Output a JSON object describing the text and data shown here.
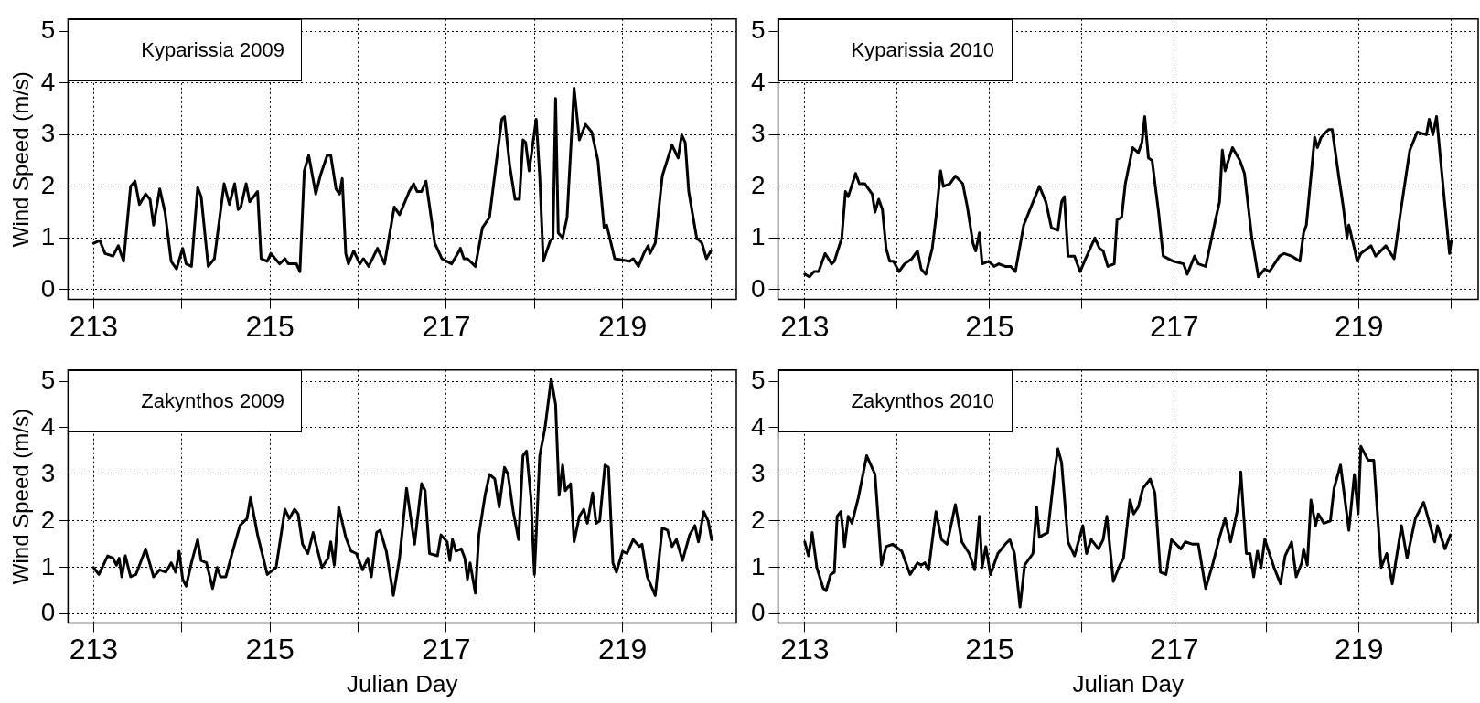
{
  "chart_data": [
    {
      "type": "line",
      "title": "Kyparissia 2009",
      "ylabel": "Wind Speed (m/s)",
      "xlim": [
        212.71,
        220.29
      ],
      "ylim": [
        -0.19,
        5.24
      ],
      "xticks": [
        213,
        {
          "value": 214,
          "label": null
        },
        215,
        {
          "value": 216,
          "label": null
        },
        217,
        {
          "value": 218,
          "label": null
        },
        219,
        {
          "value": 220,
          "label": null
        }
      ],
      "yticks": [
        0,
        1,
        2,
        3,
        4,
        5
      ],
      "grid": true,
      "line_style": "solid",
      "series": [
        {
          "color": "#000000",
          "x": [
            213.0,
            213.07,
            213.13,
            213.22,
            213.28,
            213.34,
            213.42,
            213.47,
            213.52,
            213.59,
            213.64,
            213.68,
            213.75,
            213.81,
            213.88,
            213.94,
            214.01,
            214.05,
            214.11,
            214.18,
            214.22,
            214.3,
            214.37,
            214.48,
            214.54,
            214.6,
            214.64,
            214.67,
            214.73,
            214.77,
            214.86,
            214.9,
            214.97,
            215.01,
            215.11,
            215.17,
            215.21,
            215.3,
            215.34,
            215.39,
            215.44,
            215.52,
            215.57,
            215.65,
            215.69,
            215.75,
            215.79,
            215.82,
            215.86,
            215.89,
            215.95,
            216.02,
            216.06,
            216.12,
            216.22,
            216.3,
            216.41,
            216.47,
            216.58,
            216.63,
            216.67,
            216.72,
            216.77,
            216.87,
            216.95,
            217.06,
            217.13,
            217.16,
            217.2,
            217.24,
            217.33,
            217.41,
            217.49,
            217.57,
            217.63,
            217.66,
            217.72,
            217.78,
            217.83,
            217.87,
            217.9,
            217.94,
            218.02,
            218.06,
            218.1,
            218.18,
            218.21,
            218.24,
            218.27,
            218.32,
            218.37,
            218.45,
            218.51,
            218.58,
            218.65,
            218.72,
            218.79,
            218.82,
            218.91,
            219.08,
            219.12,
            219.18,
            219.24,
            219.29,
            219.31,
            219.37,
            219.45,
            219.56,
            219.63,
            219.67,
            219.71,
            219.75,
            219.84,
            219.9,
            219.95,
            220.0
          ],
          "values": [
            0.9,
            0.95,
            0.7,
            0.65,
            0.85,
            0.55,
            2.0,
            2.1,
            1.65,
            1.85,
            1.75,
            1.25,
            1.95,
            1.5,
            0.55,
            0.4,
            0.8,
            0.5,
            0.45,
            1.98,
            1.8,
            0.45,
            0.6,
            2.05,
            1.65,
            2.05,
            1.55,
            1.6,
            2.05,
            1.7,
            1.9,
            0.6,
            0.55,
            0.7,
            0.5,
            0.6,
            0.5,
            0.5,
            0.35,
            2.3,
            2.6,
            1.85,
            2.2,
            2.6,
            2.6,
            1.95,
            1.85,
            2.15,
            0.7,
            0.5,
            0.75,
            0.5,
            0.6,
            0.45,
            0.8,
            0.5,
            1.6,
            1.45,
            1.9,
            2.05,
            1.9,
            1.9,
            2.1,
            0.9,
            0.6,
            0.5,
            0.7,
            0.8,
            0.6,
            0.6,
            0.45,
            1.2,
            1.4,
            2.5,
            3.3,
            3.35,
            2.4,
            1.75,
            1.75,
            2.9,
            2.85,
            2.3,
            3.3,
            2.2,
            0.55,
            0.95,
            1.0,
            3.7,
            1.1,
            1.0,
            1.4,
            3.9,
            2.9,
            3.2,
            3.05,
            2.5,
            1.2,
            1.25,
            0.6,
            0.55,
            0.6,
            0.45,
            0.7,
            0.85,
            0.7,
            0.9,
            2.2,
            2.8,
            2.55,
            3.0,
            2.85,
            1.9,
            1.0,
            0.9,
            0.6,
            0.75
          ]
        }
      ]
    },
    {
      "type": "line",
      "title": "Kyparissia 2010",
      "xlim": [
        212.71,
        220.29
      ],
      "ylim": [
        -0.19,
        5.24
      ],
      "xticks": [
        213,
        {
          "value": 214,
          "label": null
        },
        215,
        {
          "value": 216,
          "label": null
        },
        217,
        {
          "value": 218,
          "label": null
        },
        219,
        {
          "value": 220,
          "label": null
        }
      ],
      "yticks": [
        0,
        1,
        2,
        3,
        4,
        5
      ],
      "grid": true,
      "line_style": "solid",
      "series": [
        {
          "color": "#000000",
          "x": [
            213.0,
            213.05,
            213.1,
            213.15,
            213.22,
            213.29,
            213.32,
            213.4,
            213.44,
            213.47,
            213.55,
            213.59,
            213.65,
            213.73,
            213.76,
            213.8,
            213.84,
            213.88,
            213.92,
            213.96,
            214.02,
            214.08,
            214.16,
            214.22,
            214.26,
            214.31,
            214.38,
            214.42,
            214.47,
            214.5,
            214.57,
            214.63,
            214.71,
            214.76,
            214.82,
            214.85,
            214.89,
            214.92,
            214.99,
            215.05,
            215.1,
            215.17,
            215.23,
            215.28,
            215.37,
            215.46,
            215.54,
            215.61,
            215.67,
            215.74,
            215.78,
            215.81,
            215.85,
            215.92,
            215.98,
            216.04,
            216.14,
            216.19,
            216.23,
            216.28,
            216.35,
            216.38,
            216.43,
            216.47,
            216.55,
            216.61,
            216.65,
            216.68,
            216.72,
            216.76,
            216.83,
            216.88,
            216.99,
            217.1,
            217.14,
            217.22,
            217.26,
            217.34,
            217.44,
            217.49,
            217.52,
            217.55,
            217.63,
            217.71,
            217.76,
            217.84,
            217.91,
            217.98,
            218.03,
            218.14,
            218.19,
            218.27,
            218.36,
            218.4,
            218.43,
            218.52,
            218.55,
            218.59,
            218.67,
            218.71,
            218.78,
            218.83,
            218.87,
            218.89,
            218.95,
            218.98,
            219.02,
            219.13,
            219.18,
            219.29,
            219.38,
            219.45,
            219.55,
            219.63,
            219.73,
            219.76,
            219.8,
            219.84,
            219.9,
            219.98,
            220.0
          ],
          "values": [
            0.3,
            0.25,
            0.35,
            0.35,
            0.7,
            0.5,
            0.55,
            1.0,
            1.9,
            1.8,
            2.25,
            2.05,
            2.05,
            1.85,
            1.5,
            1.75,
            1.55,
            0.8,
            0.55,
            0.55,
            0.35,
            0.5,
            0.6,
            0.75,
            0.4,
            0.3,
            0.8,
            1.4,
            2.3,
            2.0,
            2.05,
            2.2,
            2.05,
            1.6,
            0.9,
            0.75,
            1.1,
            0.5,
            0.55,
            0.45,
            0.5,
            0.45,
            0.45,
            0.35,
            1.25,
            1.65,
            2.0,
            1.7,
            1.2,
            1.15,
            1.7,
            1.8,
            0.65,
            0.65,
            0.35,
            0.6,
            1.0,
            0.8,
            0.75,
            0.45,
            0.5,
            1.35,
            1.4,
            2.05,
            2.75,
            2.65,
            2.85,
            3.35,
            2.55,
            2.5,
            1.5,
            0.65,
            0.55,
            0.5,
            0.3,
            0.65,
            0.5,
            0.45,
            1.3,
            1.7,
            2.7,
            2.3,
            2.75,
            2.5,
            2.25,
            1.0,
            0.25,
            0.4,
            0.35,
            0.65,
            0.7,
            0.65,
            0.55,
            1.1,
            1.25,
            2.95,
            2.75,
            2.95,
            3.1,
            3.1,
            2.2,
            1.6,
            1.0,
            1.25,
            0.8,
            0.55,
            0.7,
            0.85,
            0.65,
            0.85,
            0.6,
            1.5,
            2.7,
            3.05,
            3.0,
            3.3,
            3.0,
            3.35,
            2.2,
            0.7,
            0.95
          ]
        }
      ]
    },
    {
      "type": "line",
      "title": "Zakynthos 2009",
      "ylabel": "Wind Speed (m/s)",
      "xlabel": "Julian Day",
      "xlim": [
        212.71,
        220.29
      ],
      "ylim": [
        -0.19,
        5.24
      ],
      "xticks": [
        213,
        {
          "value": 214,
          "label": null
        },
        215,
        {
          "value": 216,
          "label": null
        },
        217,
        {
          "value": 218,
          "label": null
        },
        219,
        {
          "value": 220,
          "label": null
        }
      ],
      "yticks": [
        0,
        1,
        2,
        3,
        4,
        5
      ],
      "grid": true,
      "line_style": "solid",
      "series": [
        {
          "color": "#000000",
          "x": [
            213.0,
            213.06,
            213.16,
            213.22,
            213.26,
            213.29,
            213.32,
            213.36,
            213.42,
            213.48,
            213.59,
            213.68,
            213.75,
            213.82,
            213.88,
            213.93,
            213.97,
            214.01,
            214.05,
            214.11,
            214.18,
            214.22,
            214.28,
            214.35,
            214.4,
            214.44,
            214.5,
            214.57,
            214.66,
            214.74,
            214.78,
            214.86,
            214.97,
            215.07,
            215.17,
            215.22,
            215.28,
            215.32,
            215.37,
            215.43,
            215.49,
            215.59,
            215.66,
            215.69,
            215.73,
            215.78,
            215.86,
            215.92,
            215.98,
            216.05,
            216.11,
            216.15,
            216.21,
            216.25,
            216.32,
            216.4,
            216.47,
            216.55,
            216.64,
            216.72,
            216.76,
            216.81,
            216.9,
            216.94,
            217.01,
            217.04,
            217.07,
            217.11,
            217.17,
            217.21,
            217.24,
            217.27,
            217.33,
            217.37,
            217.44,
            217.49,
            217.55,
            217.6,
            217.66,
            217.7,
            217.76,
            217.82,
            217.87,
            217.91,
            217.96,
            218.0,
            218.06,
            218.12,
            218.19,
            218.24,
            218.28,
            218.32,
            218.35,
            218.41,
            218.45,
            218.51,
            218.56,
            218.6,
            218.66,
            218.7,
            218.74,
            218.8,
            218.84,
            218.89,
            218.93,
            219.0,
            219.05,
            219.12,
            219.19,
            219.22,
            219.28,
            219.37,
            219.45,
            219.51,
            219.56,
            219.61,
            219.68,
            219.76,
            219.82,
            219.86,
            219.92,
            219.97,
            220.01
          ],
          "values": [
            1.0,
            0.85,
            1.25,
            1.2,
            1.05,
            1.2,
            0.8,
            1.25,
            0.8,
            0.85,
            1.4,
            0.8,
            0.95,
            0.9,
            1.1,
            0.9,
            1.35,
            0.75,
            0.6,
            1.1,
            1.6,
            1.15,
            1.1,
            0.55,
            1.0,
            0.8,
            0.8,
            1.3,
            1.9,
            2.05,
            2.5,
            1.7,
            0.85,
            1.0,
            2.25,
            2.05,
            2.25,
            2.15,
            1.5,
            1.3,
            1.75,
            1.0,
            1.2,
            1.55,
            1.05,
            2.3,
            1.65,
            1.35,
            1.3,
            0.95,
            1.2,
            0.8,
            1.75,
            1.8,
            1.35,
            0.4,
            1.2,
            2.7,
            1.5,
            2.8,
            2.65,
            1.3,
            1.25,
            1.7,
            1.55,
            1.15,
            1.6,
            1.35,
            1.4,
            1.2,
            0.75,
            1.1,
            0.45,
            1.7,
            2.55,
            3.0,
            2.9,
            2.3,
            3.15,
            3.0,
            2.2,
            1.6,
            3.4,
            3.5,
            2.5,
            0.85,
            3.4,
            4.0,
            5.05,
            4.5,
            2.55,
            3.2,
            2.65,
            2.8,
            1.55,
            2.1,
            2.25,
            1.95,
            2.6,
            1.95,
            2.0,
            3.2,
            3.15,
            1.1,
            0.9,
            1.35,
            1.3,
            1.6,
            1.45,
            1.5,
            0.8,
            0.4,
            1.85,
            1.8,
            1.45,
            1.6,
            1.15,
            1.7,
            1.9,
            1.55,
            2.2,
            2.0,
            1.6
          ]
        }
      ]
    },
    {
      "type": "line",
      "title": "Zakynthos 2010",
      "xlabel": "Julian Day",
      "xlim": [
        212.71,
        220.29
      ],
      "ylim": [
        -0.19,
        5.24
      ],
      "xticks": [
        213,
        {
          "value": 214,
          "label": null
        },
        215,
        {
          "value": 216,
          "label": null
        },
        217,
        {
          "value": 218,
          "label": null
        },
        219,
        {
          "value": 220,
          "label": null
        }
      ],
      "yticks": [
        0,
        1,
        2,
        3,
        4,
        5
      ],
      "grid": true,
      "line_style": "solid",
      "series": [
        {
          "color": "#000000",
          "x": [
            213.0,
            213.04,
            213.08,
            213.13,
            213.2,
            213.23,
            213.28,
            213.32,
            213.35,
            213.39,
            213.43,
            213.47,
            213.51,
            213.58,
            213.67,
            213.76,
            213.83,
            213.88,
            213.95,
            214.05,
            214.14,
            214.22,
            214.26,
            214.3,
            214.34,
            214.42,
            214.48,
            214.54,
            214.63,
            214.7,
            214.78,
            214.84,
            214.89,
            214.92,
            214.96,
            215.01,
            215.09,
            215.17,
            215.22,
            215.27,
            215.33,
            215.38,
            215.47,
            215.51,
            215.54,
            215.58,
            215.63,
            215.7,
            215.74,
            215.78,
            215.85,
            215.92,
            216.01,
            216.05,
            216.1,
            216.18,
            216.23,
            216.27,
            216.34,
            216.41,
            216.45,
            216.52,
            216.56,
            216.61,
            216.66,
            216.74,
            216.79,
            216.85,
            216.91,
            216.97,
            217.07,
            217.12,
            217.2,
            217.26,
            217.34,
            217.42,
            217.49,
            217.55,
            217.61,
            217.68,
            217.72,
            217.78,
            217.82,
            217.86,
            217.9,
            217.94,
            217.98,
            218.08,
            218.15,
            218.2,
            218.27,
            218.32,
            218.38,
            218.4,
            218.44,
            218.48,
            218.53,
            218.56,
            218.62,
            218.69,
            218.73,
            218.8,
            218.89,
            218.95,
            218.99,
            219.02,
            219.1,
            219.16,
            219.24,
            219.3,
            219.36,
            219.46,
            219.52,
            219.61,
            219.7,
            219.75,
            219.82,
            219.85,
            219.93,
            219.99
          ],
          "values": [
            1.55,
            1.25,
            1.75,
            1.0,
            0.55,
            0.5,
            0.85,
            0.9,
            2.1,
            2.2,
            1.45,
            2.1,
            1.95,
            2.5,
            3.4,
            3.0,
            1.05,
            1.45,
            1.5,
            1.35,
            0.85,
            1.1,
            1.05,
            1.1,
            0.95,
            2.2,
            1.6,
            1.5,
            2.35,
            1.55,
            1.3,
            0.95,
            2.1,
            1.0,
            1.45,
            0.85,
            1.3,
            1.5,
            1.6,
            1.3,
            0.15,
            1.05,
            1.3,
            2.3,
            1.65,
            1.7,
            1.75,
            3.0,
            3.55,
            3.25,
            1.55,
            1.25,
            1.9,
            1.3,
            1.6,
            1.4,
            1.6,
            2.1,
            0.7,
            1.05,
            1.2,
            2.45,
            2.15,
            2.3,
            2.7,
            2.9,
            2.6,
            0.9,
            0.85,
            1.6,
            1.4,
            1.55,
            1.5,
            1.5,
            0.55,
            1.1,
            1.65,
            2.05,
            1.55,
            2.2,
            3.05,
            1.3,
            1.3,
            0.8,
            1.35,
            1.0,
            1.6,
            1.0,
            0.65,
            1.25,
            1.55,
            0.8,
            1.1,
            1.4,
            1.05,
            2.45,
            1.9,
            2.15,
            1.95,
            2.0,
            2.7,
            3.2,
            1.8,
            3.0,
            2.15,
            3.6,
            3.3,
            3.3,
            1.0,
            1.3,
            0.65,
            1.9,
            1.2,
            2.05,
            2.4,
            2.05,
            1.55,
            1.9,
            1.4,
            1.7
          ]
        }
      ]
    }
  ]
}
